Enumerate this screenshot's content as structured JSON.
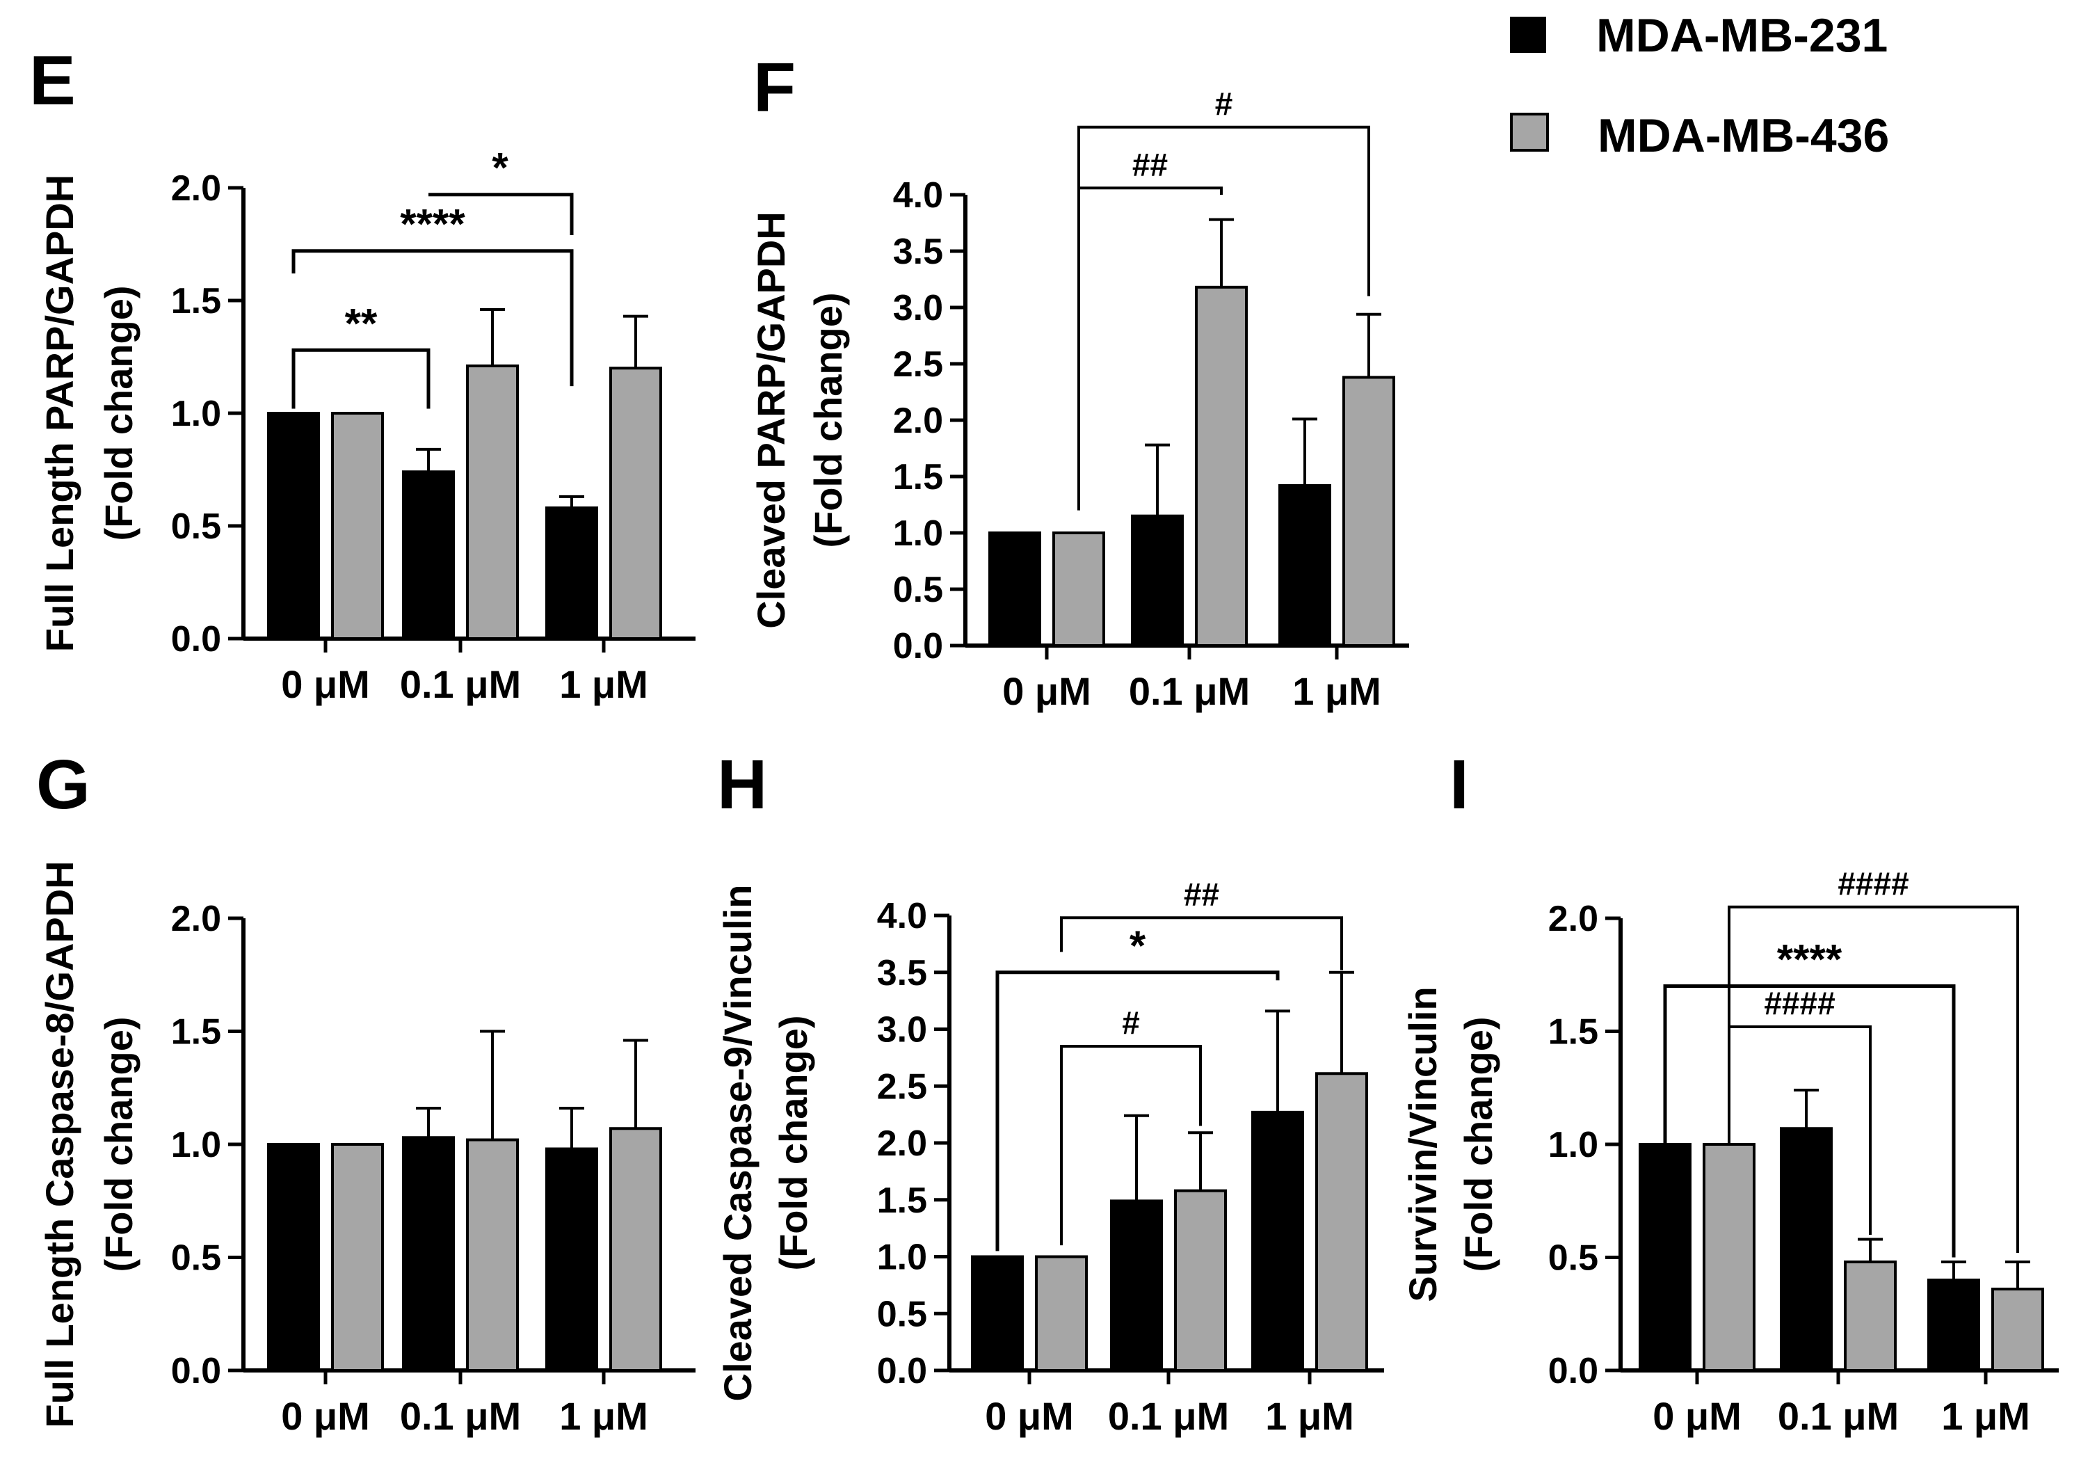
{
  "legend": {
    "items": [
      {
        "name": "MDA-MB-231",
        "color": "#000000"
      },
      {
        "name": "MDA-MB-436",
        "color": "#a6a6a6"
      }
    ]
  },
  "chart_data": [
    {
      "panel": "E",
      "type": "bar",
      "ylabel_line1": "Full Length PARP/GAPDH",
      "ylabel_line2": "(Fold change)",
      "categories": [
        "0 μM",
        "0.1 μM",
        "1 μM"
      ],
      "ylim": [
        0,
        2.0
      ],
      "yticks": [
        0.0,
        0.5,
        1.0,
        1.5,
        2.0
      ],
      "series": [
        {
          "name": "MDA-MB-231",
          "values": [
            1.0,
            0.74,
            0.58
          ],
          "errors": [
            0,
            0.1,
            0.05
          ]
        },
        {
          "name": "MDA-MB-436",
          "values": [
            1.0,
            1.21,
            1.2
          ],
          "errors": [
            0,
            0.25,
            0.23
          ]
        }
      ],
      "annotations": [
        {
          "label": "**",
          "from": [
            0,
            0
          ],
          "to": [
            1,
            0
          ],
          "y": 1.28,
          "end_drop": [
            0.26,
            0.26
          ],
          "bold": true
        },
        {
          "label": "****",
          "from": [
            0,
            0
          ],
          "to": [
            2,
            0
          ],
          "y": 1.72,
          "end_drop": [
            0.1,
            0.6
          ],
          "bold": true
        },
        {
          "label": "*",
          "from": [
            1,
            0
          ],
          "to": [
            2,
            0
          ],
          "y": 1.97,
          "end_drop": [
            0,
            0.18
          ],
          "bold": true
        }
      ]
    },
    {
      "panel": "F",
      "type": "bar",
      "ylabel_line1": "Cleaved PARP/GAPDH",
      "ylabel_line2": "(Fold change)",
      "categories": [
        "0 μM",
        "0.1 μM",
        "1 μM"
      ],
      "ylim": [
        0,
        4.0
      ],
      "yticks": [
        0.0,
        0.5,
        1.0,
        1.5,
        2.0,
        2.5,
        3.0,
        3.5,
        4.0
      ],
      "series": [
        {
          "name": "MDA-MB-231",
          "values": [
            1.0,
            1.15,
            1.42
          ],
          "errors": [
            0,
            0.63,
            0.59
          ]
        },
        {
          "name": "MDA-MB-436",
          "values": [
            1.0,
            3.18,
            2.38
          ],
          "errors": [
            0,
            0.6,
            0.56
          ]
        }
      ],
      "annotations": [
        {
          "label": "##",
          "from": [
            0,
            1
          ],
          "to": [
            1,
            1
          ],
          "y": 4.06,
          "end_drop": [
            2.8,
            0.06
          ],
          "bold": false
        },
        {
          "label": "#",
          "from": [
            0,
            1
          ],
          "to": [
            2,
            1
          ],
          "y": 4.6,
          "end_drop": [
            3.4,
            1.5
          ],
          "bold": false
        }
      ]
    },
    {
      "panel": "G",
      "type": "bar",
      "ylabel_line1": "Full Length Caspase-8/GAPDH",
      "ylabel_line2": "(Fold change)",
      "categories": [
        "0 μM",
        "0.1 μM",
        "1 μM"
      ],
      "ylim": [
        0,
        2.0
      ],
      "yticks": [
        0.0,
        0.5,
        1.0,
        1.5,
        2.0
      ],
      "series": [
        {
          "name": "MDA-MB-231",
          "values": [
            1.0,
            1.03,
            0.98
          ],
          "errors": [
            0,
            0.13,
            0.18
          ]
        },
        {
          "name": "MDA-MB-436",
          "values": [
            1.0,
            1.02,
            1.07
          ],
          "errors": [
            0,
            0.48,
            0.39
          ]
        }
      ],
      "annotations": []
    },
    {
      "panel": "H",
      "type": "bar",
      "ylabel_line1": "Cleaved Caspase-9/Vinculin",
      "ylabel_line2": "(Fold change)",
      "categories": [
        "0 μM",
        "0.1 μM",
        "1 μM"
      ],
      "ylim": [
        0,
        4.0
      ],
      "yticks": [
        0.0,
        0.5,
        1.0,
        1.5,
        2.0,
        2.5,
        3.0,
        3.5,
        4.0
      ],
      "series": [
        {
          "name": "MDA-MB-231",
          "values": [
            1.0,
            1.49,
            2.27
          ],
          "errors": [
            0,
            0.75,
            0.89
          ]
        },
        {
          "name": "MDA-MB-436",
          "values": [
            1.0,
            1.58,
            2.61
          ],
          "errors": [
            0,
            0.51,
            0.89
          ]
        }
      ],
      "annotations": [
        {
          "label": "#",
          "from": [
            0,
            1
          ],
          "to": [
            1,
            1
          ],
          "y": 2.85,
          "end_drop": [
            1.75,
            0.7
          ],
          "bold": false
        },
        {
          "label": "*",
          "from": [
            0,
            0
          ],
          "to": [
            2,
            0
          ],
          "y": 3.5,
          "end_drop": [
            2.45,
            0.07
          ],
          "bold": true
        },
        {
          "label": "##",
          "from": [
            0,
            1
          ],
          "to": [
            2,
            1
          ],
          "y": 3.98,
          "end_drop": [
            0.3,
            0.46
          ],
          "bold": false
        }
      ]
    },
    {
      "panel": "I",
      "type": "bar",
      "ylabel_line1": "Survivin/Vinculin",
      "ylabel_line2": "(Fold change)",
      "categories": [
        "0 μM",
        "0.1 μM",
        "1 μM"
      ],
      "ylim": [
        0,
        2.0
      ],
      "yticks": [
        0.0,
        0.5,
        1.0,
        1.5,
        2.0
      ],
      "series": [
        {
          "name": "MDA-MB-231",
          "values": [
            1.0,
            1.07,
            0.4
          ],
          "errors": [
            0,
            0.17,
            0.08
          ]
        },
        {
          "name": "MDA-MB-436",
          "values": [
            1.0,
            0.48,
            0.36
          ],
          "errors": [
            0,
            0.1,
            0.12
          ]
        }
      ],
      "annotations": [
        {
          "label": "####",
          "from": [
            0,
            1
          ],
          "to": [
            1,
            1
          ],
          "y": 1.52,
          "end_drop": [
            0.4,
            0.92
          ],
          "bold": false
        },
        {
          "label": "****",
          "from": [
            0,
            0
          ],
          "to": [
            2,
            0
          ],
          "y": 1.7,
          "end_drop": [
            0.7,
            1.2
          ],
          "bold": true
        },
        {
          "label": "####",
          "from": [
            0,
            1
          ],
          "to": [
            2,
            1
          ],
          "y": 2.05,
          "end_drop": [
            1.05,
            1.53
          ],
          "bold": false
        }
      ]
    }
  ]
}
